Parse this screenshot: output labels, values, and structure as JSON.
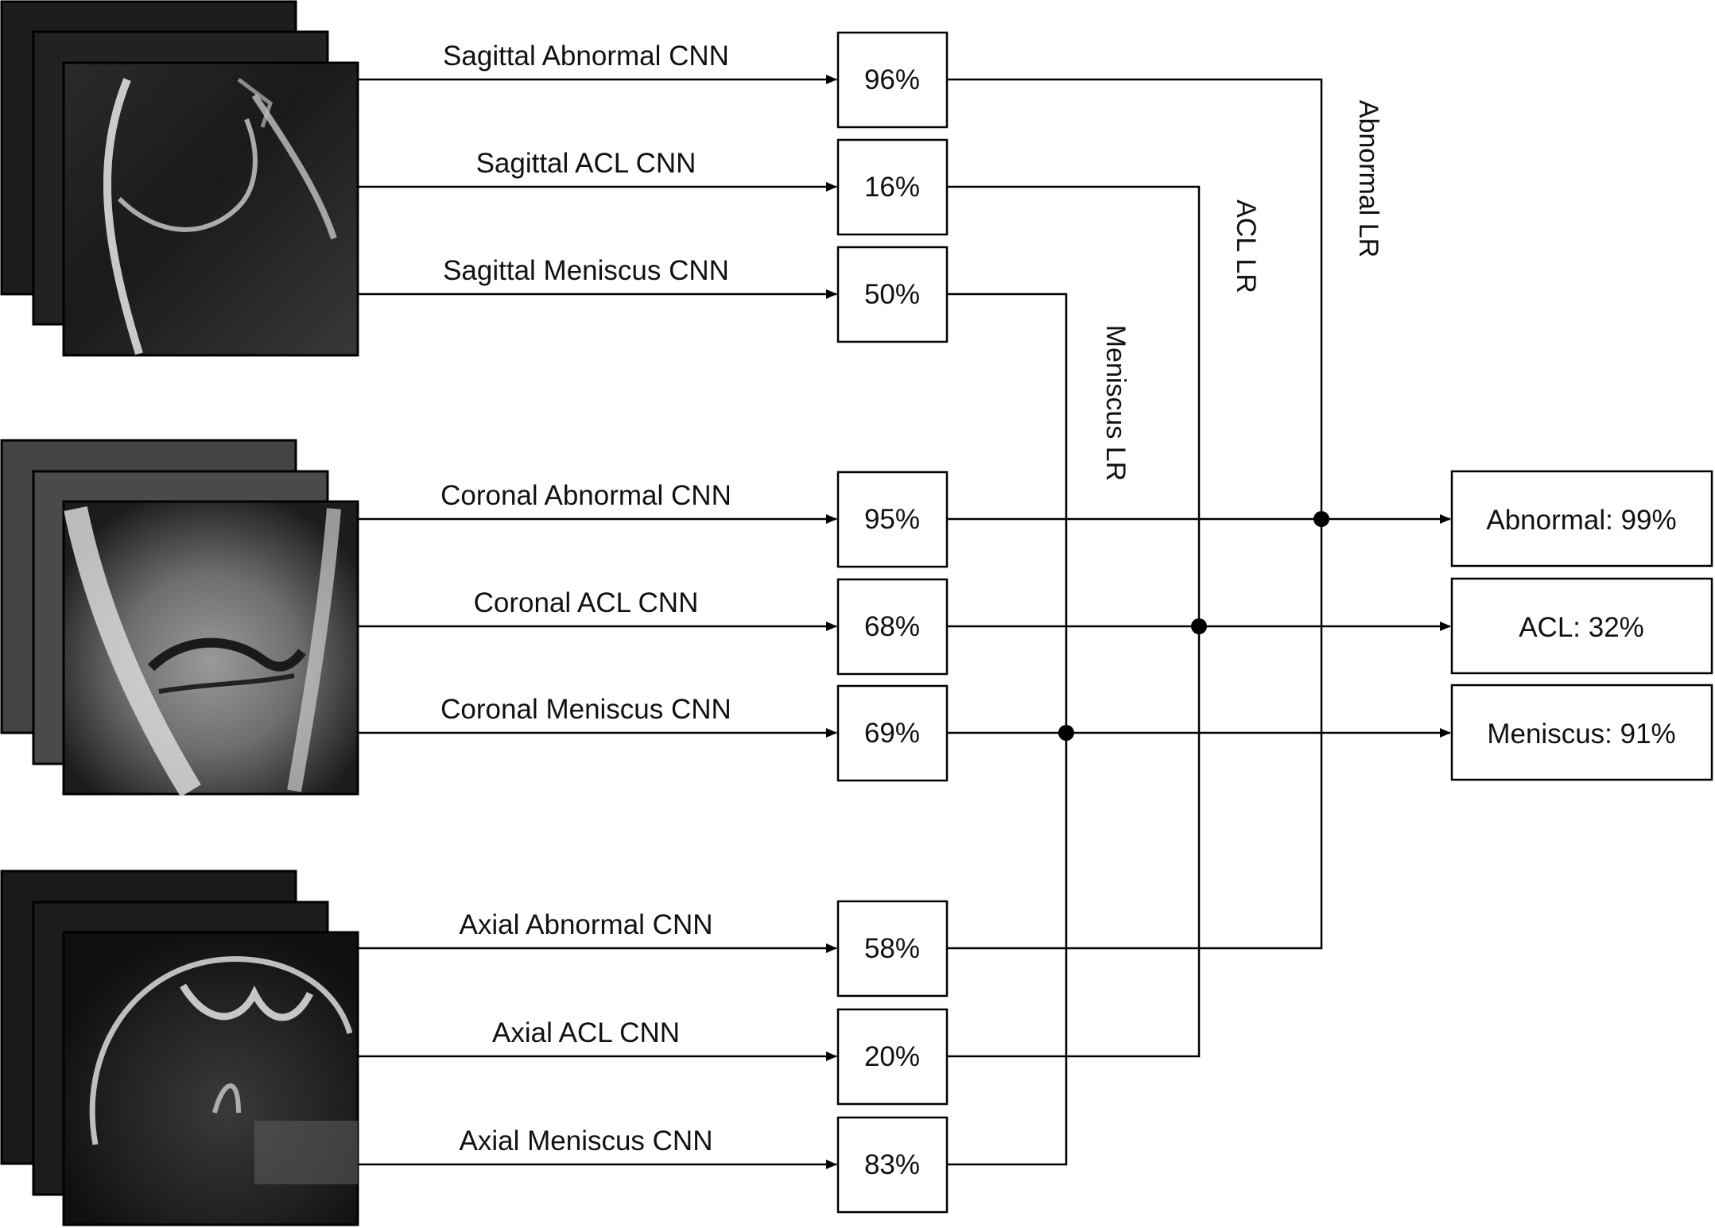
{
  "mri_stacks": [
    {
      "plane": "sagittal",
      "icon": "mri-slice-stack"
    },
    {
      "plane": "coronal",
      "icon": "mri-slice-stack"
    },
    {
      "plane": "axial",
      "icon": "mri-slice-stack"
    }
  ],
  "cnn_models": [
    {
      "label": "Sagittal Abnormal CNN",
      "prob": "96%"
    },
    {
      "label": "Sagittal ACL CNN",
      "prob": "16%"
    },
    {
      "label": "Sagittal Meniscus CNN",
      "prob": "50%"
    },
    {
      "label": "Coronal Abnormal CNN",
      "prob": "95%"
    },
    {
      "label": "Coronal ACL CNN",
      "prob": "68%"
    },
    {
      "label": "Coronal Meniscus CNN",
      "prob": "69%"
    },
    {
      "label": "Axial Abnormal CNN",
      "prob": "58%"
    },
    {
      "label": "Axial ACL CNN",
      "prob": "20%"
    },
    {
      "label": "Axial Meniscus CNN",
      "prob": "83%"
    }
  ],
  "regressions": {
    "meniscus": "Meniscus LR",
    "acl": "ACL LR",
    "abnormal": "Abnormal LR"
  },
  "outputs": {
    "abnormal": "Abnormal: 99%",
    "acl": "ACL: 32%",
    "meniscus": "Meniscus: 91%"
  }
}
